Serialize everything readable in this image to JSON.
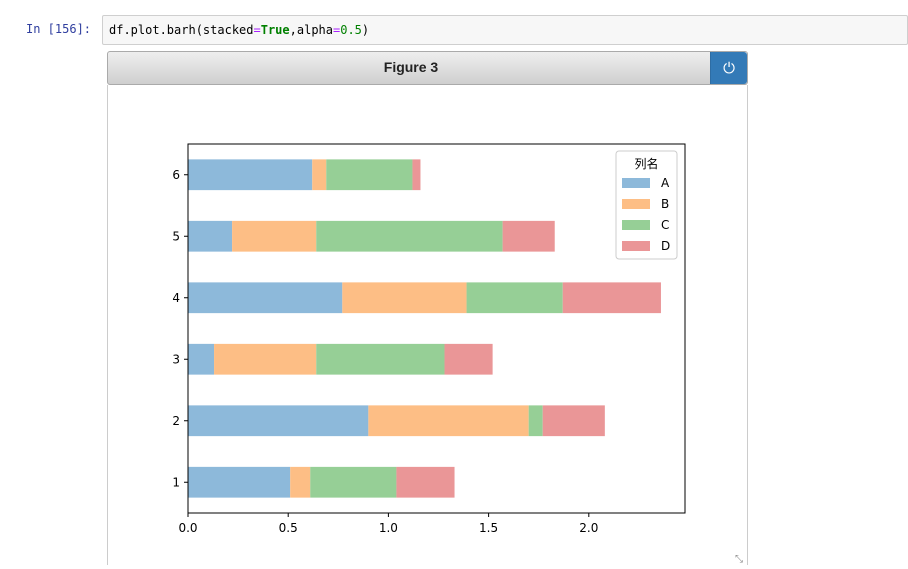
{
  "cell": {
    "prompt": "In  [156]:",
    "code_prefix": "df.plot.barh(stacked",
    "code_eq1": "=",
    "code_true": "True",
    "code_mid": ",alpha",
    "code_eq2": "=",
    "code_num": "0.5",
    "code_suffix": ")"
  },
  "figure": {
    "title": "Figure 3",
    "power_icon": "power-icon"
  },
  "chart_data": {
    "type": "bar",
    "orientation": "horizontal",
    "stacked": true,
    "categories": [
      "1",
      "2",
      "3",
      "4",
      "5",
      "6"
    ],
    "series": [
      {
        "name": "A",
        "color": "#8db9da",
        "values": [
          0.51,
          0.9,
          0.13,
          0.77,
          0.22,
          0.62
        ]
      },
      {
        "name": "B",
        "color": "#fdbe85",
        "values": [
          0.1,
          0.8,
          0.51,
          0.62,
          0.42,
          0.07
        ]
      },
      {
        "name": "C",
        "color": "#96cf96",
        "values": [
          0.43,
          0.07,
          0.64,
          0.48,
          0.93,
          0.43
        ]
      },
      {
        "name": "D",
        "color": "#ea9697",
        "values": [
          0.29,
          0.31,
          0.24,
          0.49,
          0.26,
          0.04
        ]
      }
    ],
    "xlim": [
      0,
      2.48
    ],
    "xticks": [
      "0.0",
      "0.5",
      "1.0",
      "1.5",
      "2.0"
    ],
    "legend_title": "列名",
    "legend_position": "top-right",
    "grid": false
  }
}
